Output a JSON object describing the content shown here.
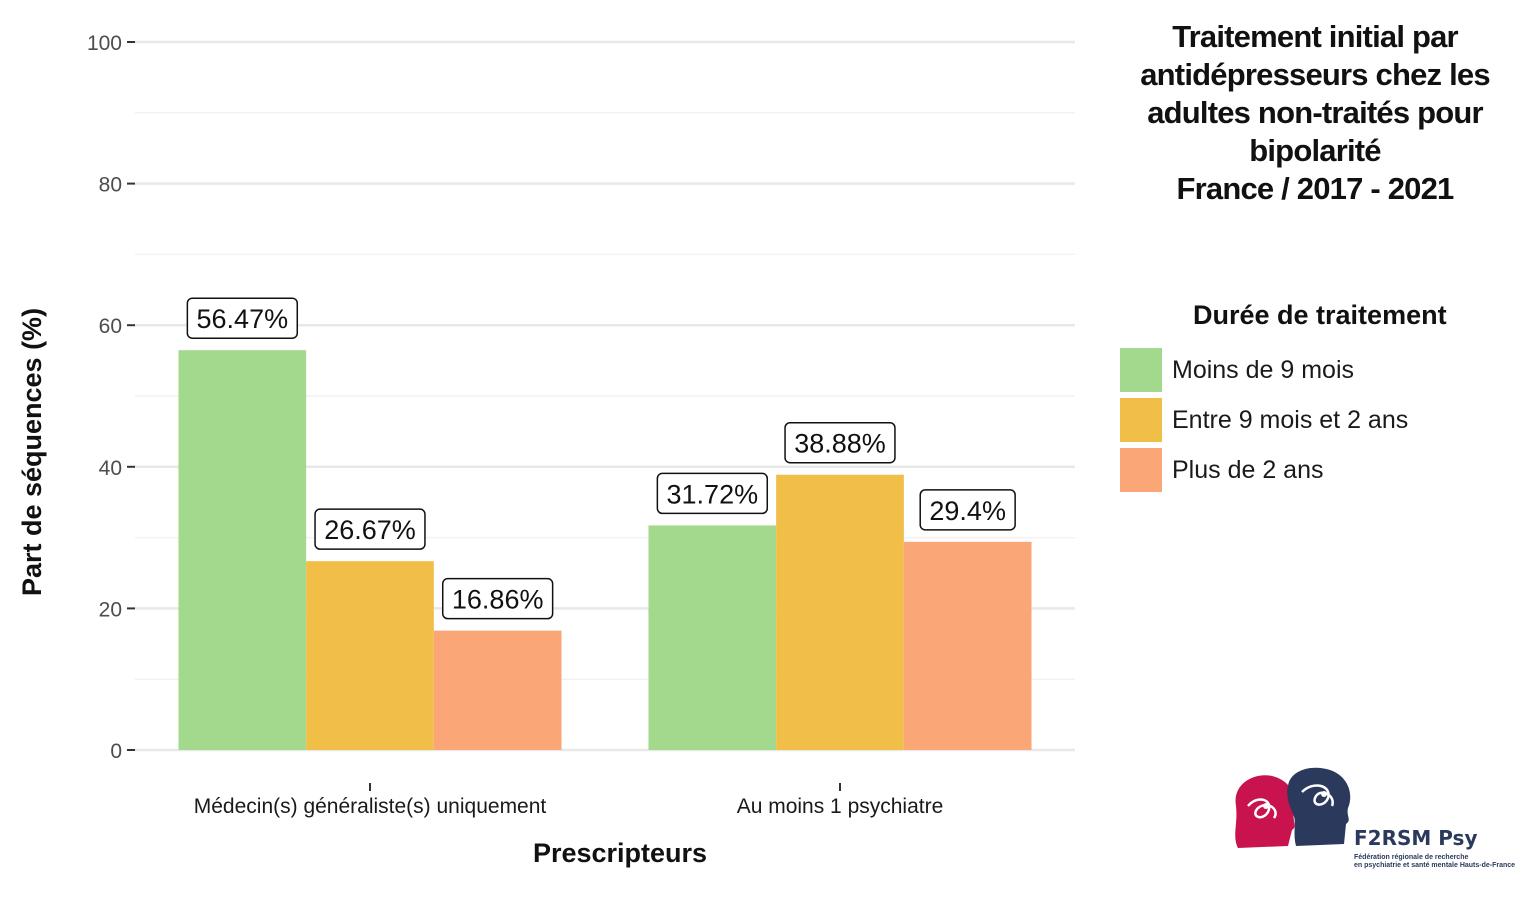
{
  "title_lines": [
    "Traitement initial par",
    "antidépresseurs chez les",
    "adultes non-traités pour",
    "bipolarité",
    "France  / 2017 - 2021"
  ],
  "legend": {
    "title": "Durée de traitement",
    "placement": "right"
  },
  "logo": {
    "name": "F2RSM Psy",
    "subtitle_lines": [
      "Fédération régionale de recherche",
      "en psychiatrie et santé mentale Hauts-de-France"
    ]
  },
  "chart_data": {
    "type": "bar",
    "title": "Traitement initial par antidépresseurs chez les adultes non-traités pour bipolarité France  / 2017 - 2021",
    "xlabel": "Prescripteurs",
    "ylabel": "Part de séquences (%)",
    "ylim": [
      0,
      100
    ],
    "yticks": [
      0,
      20,
      40,
      60,
      80,
      100
    ],
    "grid": true,
    "categories": [
      "Médecin(s) généraliste(s) uniquement",
      "Au moins 1 psychiatre"
    ],
    "series": [
      {
        "name": "Moins de 9 mois",
        "color": "#a3d98c",
        "values": [
          56.47,
          31.72
        ],
        "labels": [
          "56.47%",
          "31.72%"
        ]
      },
      {
        "name": "Entre 9 mois et 2 ans",
        "color": "#f1be48",
        "values": [
          26.67,
          38.88
        ],
        "labels": [
          "26.67%",
          "38.88%"
        ]
      },
      {
        "name": "Plus de 2 ans",
        "color": "#fba676",
        "values": [
          16.86,
          29.4
        ],
        "labels": [
          "16.86%",
          "29.4%"
        ]
      }
    ]
  }
}
